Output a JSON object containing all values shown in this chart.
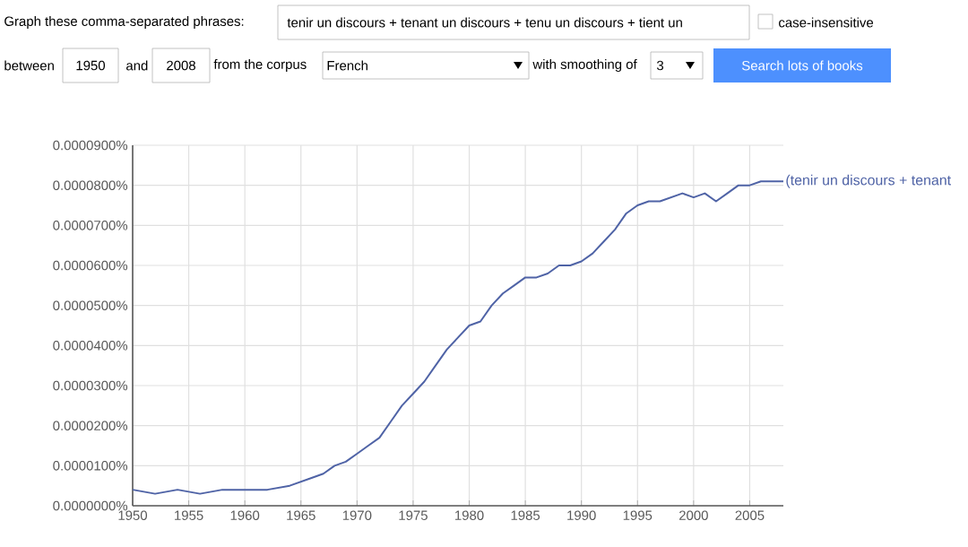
{
  "chart_data": {
    "type": "line",
    "x": [
      1950,
      1952,
      1954,
      1956,
      1958,
      1960,
      1962,
      1964,
      1966,
      1967,
      1968,
      1969,
      1970,
      1971,
      1972,
      1973,
      1974,
      1975,
      1976,
      1977,
      1978,
      1979,
      1980,
      1981,
      1982,
      1983,
      1984,
      1985,
      1986,
      1987,
      1988,
      1989,
      1990,
      1991,
      1992,
      1993,
      1994,
      1995,
      1996,
      1997,
      1998,
      1999,
      2000,
      2001,
      2002,
      2003,
      2004,
      2005,
      2006,
      2007,
      2008
    ],
    "series": [
      {
        "name": "(tenir un discours + tenant",
        "color": "#4f63a6",
        "values": [
          4e-06,
          3e-06,
          4e-06,
          3e-06,
          4e-06,
          4e-06,
          4e-06,
          5e-06,
          7e-06,
          8e-06,
          1e-05,
          1.1e-05,
          1.3e-05,
          1.5e-05,
          1.7e-05,
          2.1e-05,
          2.5e-05,
          2.8e-05,
          3.1e-05,
          3.5e-05,
          3.9e-05,
          4.2e-05,
          4.5e-05,
          4.6e-05,
          5e-05,
          5.3e-05,
          5.5e-05,
          5.7e-05,
          5.7e-05,
          5.8e-05,
          6e-05,
          6e-05,
          6.1e-05,
          6.3e-05,
          6.6e-05,
          6.9e-05,
          7.3e-05,
          7.5e-05,
          7.6e-05,
          7.6e-05,
          7.7e-05,
          7.8e-05,
          7.7e-05,
          7.8e-05,
          7.6e-05,
          7.8e-05,
          8e-05,
          8e-05,
          8.1e-05,
          8.1e-05,
          8.1e-05
        ]
      }
    ],
    "xlim": [
      1950,
      2008
    ],
    "xticks": [
      1950,
      1955,
      1960,
      1965,
      1970,
      1975,
      1980,
      1985,
      1990,
      1995,
      2000,
      2005
    ],
    "ylim": [
      0,
      9e-05
    ],
    "yticks": [
      {
        "value": 0,
        "label": "0.0000000%"
      },
      {
        "value": 1e-05,
        "label": "0.0000100%"
      },
      {
        "value": 2e-05,
        "label": "0.0000200%"
      },
      {
        "value": 3e-05,
        "label": "0.0000300%"
      },
      {
        "value": 4e-05,
        "label": "0.0000400%"
      },
      {
        "value": 5e-05,
        "label": "0.0000500%"
      },
      {
        "value": 6e-05,
        "label": "0.0000600%"
      },
      {
        "value": 7e-05,
        "label": "0.0000700%"
      },
      {
        "value": 8e-05,
        "label": "0.0000800%"
      },
      {
        "value": 9e-05,
        "label": "0.0000900%"
      }
    ],
    "grid": true,
    "annotations": [
      "Graph these comma-separated phrases:",
      "tenir un discours + tenant un discours + tenu un discours + tient un",
      "case-insensitive",
      "between",
      "1950",
      "and",
      "2008",
      "from the corpus",
      "French",
      "with smoothing of",
      "3",
      "Search lots of books"
    ]
  }
}
